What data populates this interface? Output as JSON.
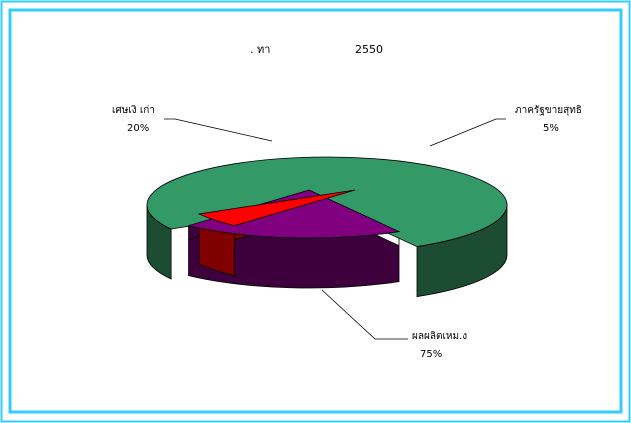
{
  "chart_data": {
    "type": "pie",
    "title_left": ".   ทา",
    "title_right": "2550",
    "slices": [
      {
        "label": "ผลผลิตเหม.ง",
        "percent_label": "75%",
        "value": 75,
        "color": "#339966",
        "side_color": "#1c4d33"
      },
      {
        "label": "เศษเงิ  เก่า",
        "percent_label": "20%",
        "value": 20,
        "color": "#800080",
        "side_color": "#3d003d"
      },
      {
        "label": "ภาครัฐขายสุทธิ",
        "percent_label": "5%",
        "value": 5,
        "color": "#ff0000",
        "side_color": "#800000"
      }
    ],
    "legend": "none",
    "grid": false
  },
  "frame": {
    "border_color": "#33ccff"
  }
}
